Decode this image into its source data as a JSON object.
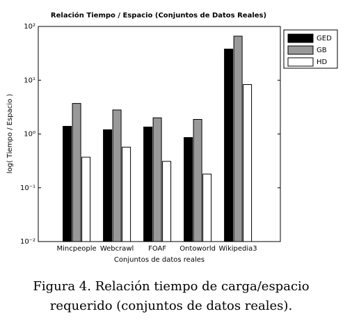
{
  "chart_data": {
    "type": "bar",
    "title": "Relación Tiempo / Espacio (Conjuntos de Datos Reales)",
    "x_label": "Conjuntos de datos reales",
    "y_label": "log( Tiempo / Espacio )",
    "categories": [
      "Mincpeople",
      "Webcrawl",
      "FOAF",
      "Ontoworld",
      "Wikipedia3"
    ],
    "series": [
      {
        "name": "GED",
        "color": "#000000",
        "values": [
          1.39,
          1.2,
          1.35,
          0.86,
          38
        ]
      },
      {
        "name": "GB",
        "color": "#999999",
        "values": [
          3.7,
          2.8,
          2.0,
          1.87,
          66
        ]
      },
      {
        "name": "HD",
        "color": "#ffffff",
        "values": [
          0.37,
          0.57,
          0.31,
          0.18,
          8.3
        ]
      }
    ],
    "log_scale": true,
    "ylim": [
      0.01,
      100
    ],
    "yticks": [
      {
        "value": 0.01,
        "label": "10⁻²"
      },
      {
        "value": 0.1,
        "label": "10⁻¹"
      },
      {
        "value": 1,
        "label": "10⁰"
      },
      {
        "value": 10,
        "label": "10¹"
      },
      {
        "value": 100,
        "label": "10²"
      }
    ],
    "legend": "northeastoutside"
  },
  "caption": [
    "Figura 4. Relación tiempo de carga/espacio",
    "requerido (conjuntos de datos reales)."
  ]
}
